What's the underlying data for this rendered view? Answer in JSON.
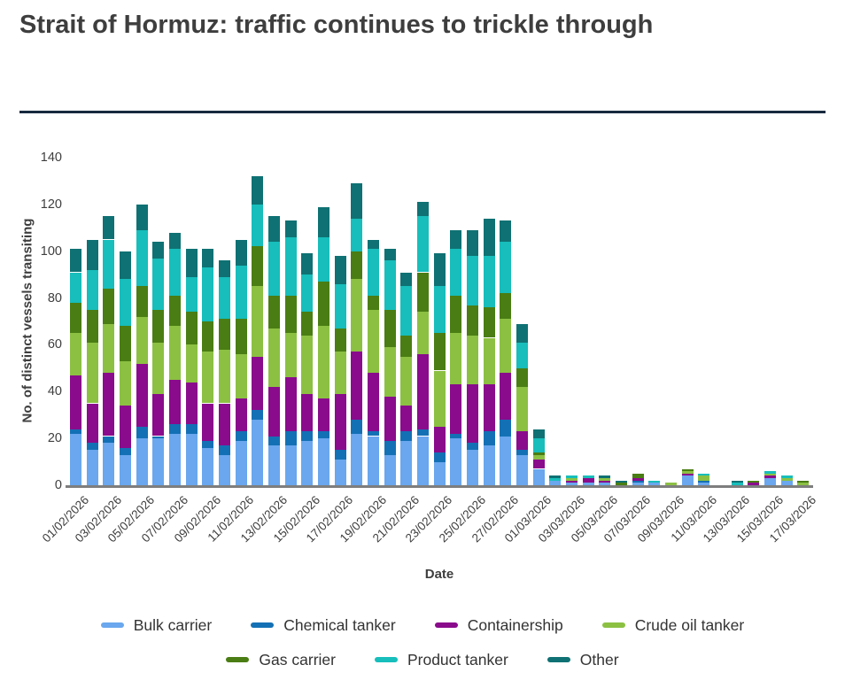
{
  "page": {
    "title": "Strait of Hormuz: traffic continues to trickle through"
  },
  "colors": {
    "background": "#ffffff",
    "title_text": "#3e3e3e",
    "divider": "#17293e",
    "axis_line": "#7e7e7e",
    "tick_text": "#3e3e3e",
    "legend_text": "#333333"
  },
  "chart_data": {
    "type": "bar",
    "stacked": true,
    "grid": false,
    "legend_position": "bottom",
    "xlabel": "Date",
    "ylabel": "No. of distinct vessels transiting",
    "ylim": [
      0,
      140
    ],
    "yticks": [
      0,
      20,
      40,
      60,
      80,
      100,
      120,
      140
    ],
    "x_tick_label_every": 2,
    "categories": [
      "01/02/2026",
      "02/02/2026",
      "03/02/2026",
      "04/02/2026",
      "05/02/2026",
      "06/02/2026",
      "07/02/2026",
      "08/02/2026",
      "09/02/2026",
      "10/02/2026",
      "11/02/2026",
      "12/02/2026",
      "13/02/2026",
      "14/02/2026",
      "15/02/2026",
      "16/02/2026",
      "17/02/2026",
      "18/02/2026",
      "19/02/2026",
      "20/02/2026",
      "21/02/2026",
      "22/02/2026",
      "23/02/2026",
      "24/02/2026",
      "25/02/2026",
      "26/02/2026",
      "27/02/2026",
      "28/02/2026",
      "01/03/2026",
      "02/03/2026",
      "03/03/2026",
      "04/03/2026",
      "05/03/2026",
      "06/03/2026",
      "07/03/2026",
      "08/03/2026",
      "09/03/2026",
      "10/03/2026",
      "11/03/2026",
      "12/03/2026",
      "13/03/2026",
      "14/03/2026",
      "15/03/2026",
      "16/03/2026",
      "17/03/2026"
    ],
    "series": [
      {
        "name": "Bulk carrier",
        "color": "#6aa7ee",
        "values": [
          22,
          15,
          18,
          13,
          20,
          20,
          22,
          22,
          16,
          13,
          19,
          28,
          17,
          17,
          19,
          20,
          11,
          22,
          21,
          13,
          19,
          21,
          10,
          20,
          15,
          17,
          21,
          13,
          7,
          2,
          1,
          1,
          1,
          0,
          1,
          1,
          0,
          4,
          1,
          0,
          0,
          0,
          3,
          2,
          0
        ]
      },
      {
        "name": "Chemical tanker",
        "color": "#1470b5",
        "values": [
          2,
          3,
          3,
          3,
          5,
          1,
          4,
          4,
          3,
          4,
          4,
          4,
          4,
          6,
          4,
          3,
          4,
          6,
          2,
          6,
          4,
          3,
          4,
          2,
          3,
          6,
          7,
          2,
          0,
          0,
          0,
          0,
          0,
          0,
          1,
          0,
          0,
          0,
          1,
          0,
          0,
          0,
          0,
          0,
          0
        ]
      },
      {
        "name": "Containership",
        "color": "#8a0b8c",
        "values": [
          23,
          17,
          27,
          18,
          27,
          18,
          19,
          18,
          16,
          18,
          14,
          23,
          21,
          23,
          16,
          14,
          24,
          29,
          25,
          19,
          11,
          32,
          11,
          21,
          25,
          20,
          20,
          8,
          4,
          0,
          1,
          2,
          1,
          0,
          1,
          0,
          0,
          1,
          0,
          0,
          0,
          1,
          1,
          0,
          0
        ]
      },
      {
        "name": "Crude oil tanker",
        "color": "#8cc043",
        "values": [
          18,
          26,
          21,
          19,
          20,
          22,
          23,
          16,
          22,
          23,
          19,
          30,
          25,
          19,
          25,
          31,
          18,
          31,
          27,
          21,
          21,
          18,
          24,
          22,
          21,
          20,
          23,
          19,
          2,
          0,
          1,
          0,
          1,
          0,
          0,
          0,
          1,
          1,
          2,
          0,
          0,
          0,
          1,
          1,
          1
        ]
      },
      {
        "name": "Gas carrier",
        "color": "#4a7d13",
        "values": [
          13,
          14,
          15,
          15,
          13,
          14,
          13,
          14,
          13,
          13,
          15,
          17,
          14,
          16,
          10,
          19,
          10,
          12,
          6,
          16,
          9,
          17,
          16,
          16,
          13,
          13,
          11,
          8,
          1,
          0,
          0,
          0,
          0,
          1,
          2,
          0,
          0,
          1,
          0,
          0,
          0,
          1,
          0,
          0,
          1
        ]
      },
      {
        "name": "Product tanker",
        "color": "#17bebb",
        "values": [
          13,
          17,
          21,
          20,
          24,
          22,
          20,
          15,
          23,
          18,
          23,
          18,
          23,
          25,
          16,
          19,
          19,
          14,
          20,
          21,
          21,
          24,
          20,
          20,
          21,
          22,
          22,
          11,
          6,
          1,
          1,
          1,
          0,
          0,
          0,
          1,
          0,
          0,
          1,
          0,
          1,
          0,
          1,
          1,
          0
        ]
      },
      {
        "name": "Other",
        "color": "#0f7173",
        "values": [
          10,
          13,
          10,
          12,
          11,
          7,
          7,
          12,
          8,
          7,
          11,
          12,
          11,
          7,
          9,
          13,
          12,
          15,
          4,
          5,
          6,
          6,
          14,
          8,
          11,
          16,
          9,
          8,
          4,
          1,
          0,
          0,
          1,
          1,
          0,
          0,
          0,
          0,
          0,
          0,
          1,
          0,
          0,
          0,
          0
        ]
      }
    ]
  }
}
